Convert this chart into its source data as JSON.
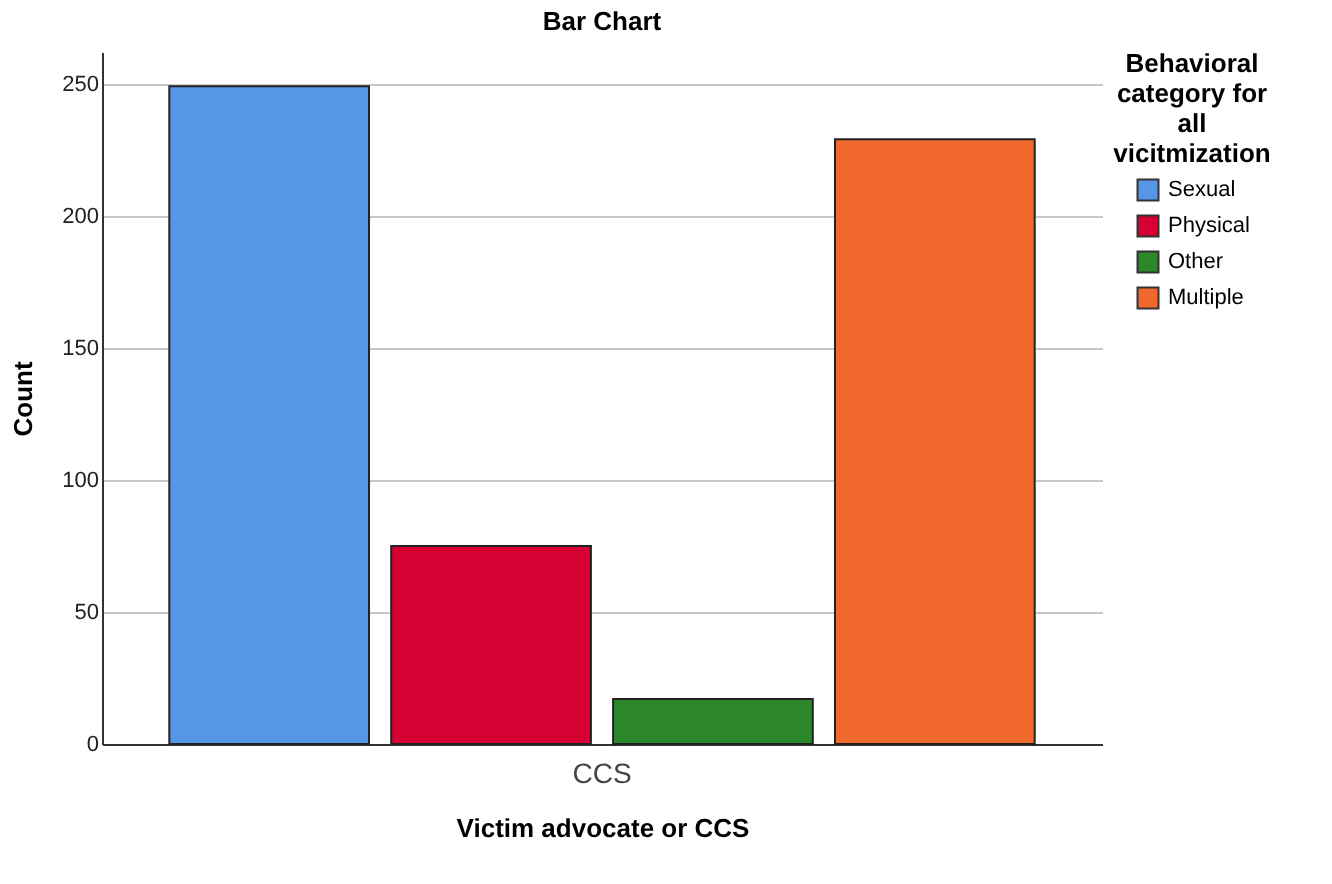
{
  "chart_data": {
    "type": "bar",
    "title": "Bar Chart",
    "xlabel": "Victim advocate or CCS",
    "ylabel": "Count",
    "legend_title": "Behavioral category for all vicitmization",
    "categories": [
      "CCS"
    ],
    "series": [
      {
        "name": "Sexual",
        "color": "#5596e6",
        "values": [
          249
        ]
      },
      {
        "name": "Physical",
        "color": "#d60032",
        "values": [
          75
        ]
      },
      {
        "name": "Other",
        "color": "#2b8729",
        "values": [
          17
        ]
      },
      {
        "name": "Multiple",
        "color": "#f1682c",
        "values": [
          229
        ]
      }
    ],
    "ylim": [
      0,
      262
    ],
    "yticks": [
      0,
      50,
      100,
      150,
      200,
      250
    ],
    "grid": "y",
    "legend": "top right"
  }
}
